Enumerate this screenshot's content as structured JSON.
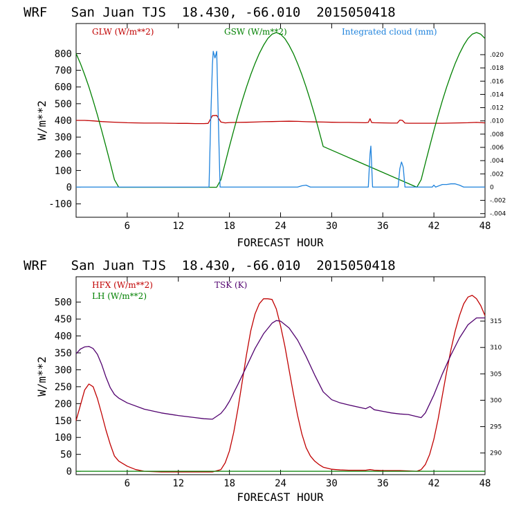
{
  "chart_data": [
    {
      "type": "line",
      "title": "WRF   San Juan TJS  18.430, -66.010  2015050418",
      "xlabel": "FORECAST HOUR",
      "ylabel": "W/m**2",
      "xlim": [
        0,
        48
      ],
      "ylim": [
        -180,
        980
      ],
      "y2lim": [
        -0.00455,
        0.0247
      ],
      "xticks": [
        6,
        12,
        18,
        24,
        30,
        36,
        42,
        48
      ],
      "xtick_labels": [
        "6",
        "12",
        "18",
        "24",
        "30",
        "36",
        "42",
        "48"
      ],
      "yticks": [
        -100,
        0,
        100,
        200,
        300,
        400,
        500,
        600,
        700,
        800
      ],
      "ytick_labels": [
        "-100",
        "0",
        "100",
        "200",
        "300",
        "400",
        "500",
        "600",
        "700",
        "800"
      ],
      "y2ticks": [
        -0.004,
        -0.002,
        0,
        0.002,
        0.004,
        0.006,
        0.008,
        0.01,
        0.012,
        0.014,
        0.016,
        0.018,
        0.02
      ],
      "y2tick_labels": [
        ".004",
        ".002",
        "0",
        ".002",
        ".004",
        ".006",
        ".008",
        ".010",
        ".012",
        ".014",
        ".016",
        ".018",
        ".020"
      ],
      "y2tick_signs": [
        "-",
        "-",
        "",
        "",
        "",
        "",
        "",
        "",
        "",
        "",
        "",
        "",
        ""
      ],
      "series": [
        {
          "name": "GLW (W/m**2)",
          "color": "#c00000",
          "axis": "left",
          "x": [
            0,
            1,
            2,
            3,
            4,
            5,
            6,
            7,
            8,
            9,
            10,
            11,
            12,
            13,
            14,
            15,
            15.5,
            16,
            16.5,
            17,
            17.5,
            18,
            19,
            20,
            21,
            22,
            23,
            24,
            25,
            26,
            27,
            28,
            29,
            30,
            31,
            32,
            33,
            34,
            34.3,
            34.5,
            34.7,
            35,
            36,
            37,
            37.7,
            38,
            38.3,
            38.6,
            39,
            40,
            41,
            42,
            43,
            44,
            45,
            46,
            47,
            48
          ],
          "y": [
            400,
            400,
            397,
            393,
            390,
            388,
            386,
            385,
            384,
            384,
            384,
            383,
            382,
            382,
            381,
            381,
            382,
            428,
            430,
            390,
            385,
            387,
            388,
            389,
            390,
            392,
            393,
            394,
            395,
            394,
            392,
            391,
            390,
            389,
            388,
            388,
            387,
            386,
            388,
            410,
            387,
            386,
            385,
            384,
            384,
            402,
            400,
            384,
            383,
            383,
            383,
            383,
            383,
            384,
            385,
            386,
            388,
            385
          ]
        },
        {
          "name": "GSW (W/m**2)",
          "color": "#008000",
          "axis": "left",
          "x": [
            0,
            0.5,
            1,
            1.5,
            2,
            2.5,
            3,
            3.5,
            4,
            4.5,
            5,
            16,
            16.5,
            17,
            17.5,
            18,
            18.5,
            19,
            19.5,
            20,
            20.5,
            21,
            21.5,
            22,
            22.5,
            23,
            23.5,
            24,
            24.5,
            25,
            25.5,
            26,
            26.5,
            27,
            27.5,
            28,
            28.5,
            29,
            40,
            40.5,
            41,
            41.5,
            42,
            42.5,
            43,
            43.5,
            44,
            44.5,
            45,
            45.5,
            46,
            46.5,
            47,
            47.5,
            48
          ],
          "y": [
            800,
            741,
            674,
            600,
            519,
            432,
            340,
            244,
            145,
            45,
            0,
            0,
            0,
            45,
            145,
            244,
            340,
            432,
            519,
            600,
            674,
            741,
            800,
            850,
            890,
            916,
            926,
            916,
            890,
            850,
            800,
            741,
            674,
            600,
            519,
            432,
            340,
            244,
            0,
            45,
            145,
            244,
            340,
            432,
            519,
            600,
            674,
            741,
            800,
            850,
            890,
            916,
            926,
            916,
            890
          ]
        },
        {
          "name": "Integrated cloud (mm)",
          "color": "#1e82dc",
          "axis": "right",
          "x": [
            0,
            15.6,
            15.8,
            16.0,
            16.1,
            16.3,
            16.5,
            16.7,
            16.9,
            17.1,
            26,
            26.5,
            27,
            27.5,
            34.3,
            34.5,
            34.6,
            34.8,
            37.8,
            38.0,
            38.2,
            38.4,
            38.6,
            41.8,
            42,
            42.2,
            43,
            43.5,
            44,
            44.5,
            45,
            45.5,
            48
          ],
          "y": [
            0,
            0,
            0.01,
            0.0185,
            0.0205,
            0.0195,
            0.0205,
            0.01,
            0,
            0,
            0,
            0.0002,
            0.0003,
            0,
            0,
            0.005,
            0.0062,
            0,
            0,
            0.0028,
            0.0038,
            0.003,
            0,
            0,
            0.0003,
            0,
            0.0004,
            0.0004,
            0.0005,
            0.0005,
            0.0003,
            0,
            0
          ]
        }
      ],
      "legend": [
        "GLW (W/m**2)",
        "GSW (W/m**2)",
        "Integrated cloud (mm)"
      ]
    },
    {
      "type": "line",
      "title": "WRF   San Juan TJS  18.430, -66.010  2015050418",
      "xlabel": "FORECAST HOUR",
      "ylabel": "W/m**2",
      "xlim": [
        0,
        48
      ],
      "ylim": [
        -10,
        575
      ],
      "y2lim": [
        285.9,
        323.4
      ],
      "xticks": [
        6,
        12,
        18,
        24,
        30,
        36,
        42,
        48
      ],
      "xtick_labels": [
        "6",
        "12",
        "18",
        "24",
        "30",
        "36",
        "42",
        "48"
      ],
      "yticks": [
        0,
        50,
        100,
        150,
        200,
        250,
        300,
        350,
        400,
        450,
        500
      ],
      "ytick_labels": [
        "0",
        "50",
        "100",
        "150",
        "200",
        "250",
        "300",
        "350",
        "400",
        "450",
        "500"
      ],
      "y2ticks": [
        290,
        295,
        300,
        305,
        310,
        315
      ],
      "y2tick_labels": [
        "290",
        "295",
        "300",
        "305",
        "310",
        "315"
      ],
      "y2tick_signs": [
        "",
        "",
        "",
        "",
        "",
        ""
      ],
      "series": [
        {
          "name": "HFX (W/m**2)",
          "color": "#c00000",
          "axis": "left",
          "x": [
            0,
            0.5,
            1,
            1.5,
            2,
            2.5,
            3,
            3.5,
            4,
            4.5,
            5,
            6,
            7,
            8,
            10,
            12,
            14,
            16,
            17,
            17.5,
            18,
            18.5,
            19,
            19.5,
            20,
            20.5,
            21,
            21.5,
            22,
            22.5,
            23,
            23.5,
            24,
            24.5,
            25,
            25.5,
            26,
            26.5,
            27,
            27.5,
            28,
            28.5,
            29,
            30,
            31,
            32,
            34,
            34.5,
            35,
            36,
            38,
            40,
            40.5,
            41,
            41.5,
            42,
            42.5,
            43,
            43.5,
            44,
            44.5,
            45,
            45.5,
            46,
            46.5,
            47,
            47.5,
            48
          ],
          "y": [
            150,
            195,
            240,
            258,
            250,
            215,
            170,
            122,
            80,
            45,
            30,
            15,
            5,
            0,
            -2,
            -2,
            -2,
            -2,
            5,
            25,
            60,
            115,
            185,
            265,
            345,
            415,
            465,
            495,
            510,
            510,
            508,
            480,
            430,
            370,
            300,
            230,
            165,
            110,
            70,
            45,
            30,
            20,
            12,
            6,
            4,
            3,
            3,
            5,
            3,
            2,
            2,
            0,
            5,
            20,
            50,
            95,
            155,
            225,
            295,
            360,
            415,
            460,
            495,
            515,
            520,
            510,
            490,
            460
          ]
        },
        {
          "name": "LH (W/m**2)",
          "color": "#008000",
          "axis": "left",
          "x": [
            0,
            48
          ],
          "y": [
            0,
            0
          ]
        },
        {
          "name": "TSK (K)",
          "color": "#50006e",
          "axis": "right",
          "x": [
            0,
            0.5,
            1,
            1.5,
            2,
            2.5,
            3,
            3.5,
            4,
            4.5,
            5,
            6,
            8,
            10,
            12,
            14,
            15,
            16,
            17,
            17.5,
            18,
            19,
            20,
            21,
            22,
            23,
            23.5,
            24,
            25,
            26,
            27,
            28,
            29,
            30,
            31,
            32,
            34,
            34.5,
            35,
            36,
            37,
            38,
            39,
            40,
            40.5,
            41,
            42,
            43,
            44,
            45,
            46,
            47,
            48
          ],
          "y": [
            308.8,
            309.7,
            310.1,
            310.2,
            309.8,
            308.7,
            306.8,
            304.4,
            302.4,
            301.1,
            300.4,
            299.5,
            298.3,
            297.6,
            297.1,
            296.7,
            296.5,
            296.4,
            297.5,
            298.5,
            299.8,
            303.0,
            306.4,
            309.8,
            312.6,
            314.6,
            315.1,
            315.0,
            313.7,
            311.4,
            308.3,
            304.8,
            301.6,
            300.1,
            299.5,
            299.1,
            298.4,
            298.8,
            298.2,
            297.9,
            297.6,
            297.4,
            297.3,
            296.9,
            296.7,
            297.6,
            301.0,
            305.0,
            308.6,
            311.8,
            314.3,
            315.6,
            315.6
          ]
        }
      ],
      "legend": [
        "HFX (W/m**2)",
        "LH (W/m**2)",
        "TSK (K)"
      ]
    }
  ]
}
